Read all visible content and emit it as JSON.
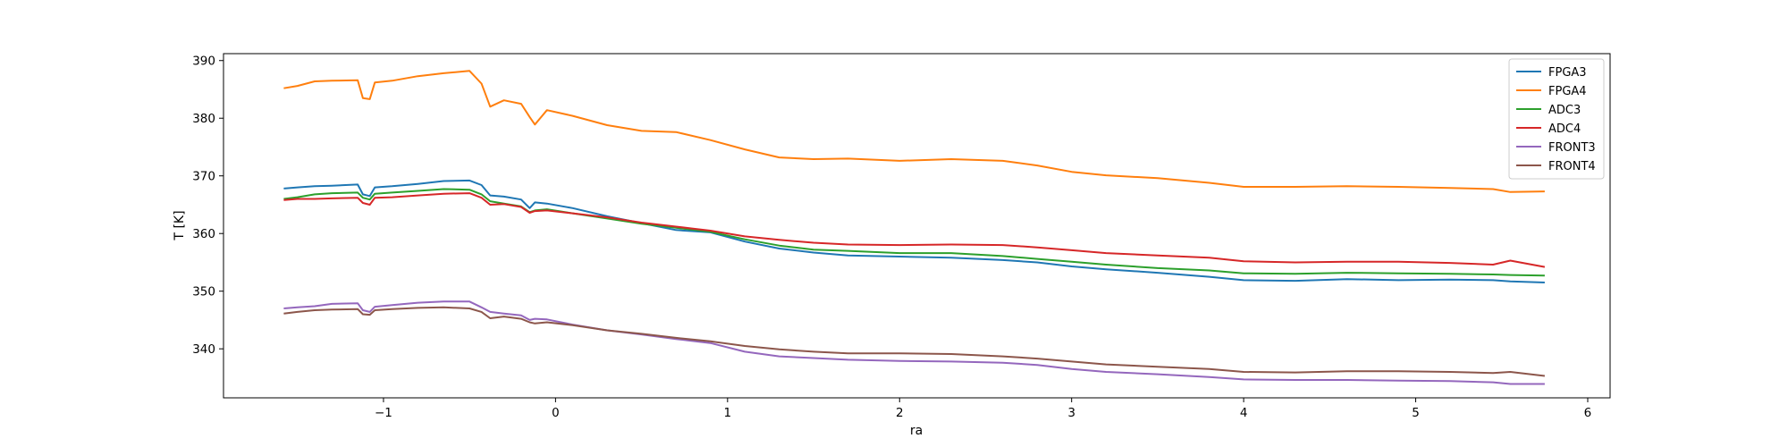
{
  "chart_data": {
    "type": "line",
    "xlabel": "ra",
    "ylabel": "T [K]",
    "xlim": [
      -1.93,
      6.13
    ],
    "ylim": [
      331.5,
      391.2
    ],
    "xticks": [
      -1,
      0,
      1,
      2,
      3,
      4,
      5,
      6
    ],
    "xtick_labels": [
      "−1",
      "0",
      "1",
      "2",
      "3",
      "4",
      "5",
      "6"
    ],
    "yticks": [
      340,
      350,
      360,
      370,
      380,
      390
    ],
    "ytick_labels": [
      "340",
      "350",
      "360",
      "370",
      "380",
      "390"
    ],
    "grid": false,
    "legend": "top-right",
    "x": [
      -1.58,
      -1.5,
      -1.4,
      -1.3,
      -1.15,
      -1.12,
      -1.08,
      -1.05,
      -0.95,
      -0.8,
      -0.65,
      -0.5,
      -0.43,
      -0.38,
      -0.3,
      -0.2,
      -0.15,
      -0.12,
      -0.05,
      0.1,
      0.3,
      0.5,
      0.7,
      0.9,
      1.1,
      1.3,
      1.5,
      1.7,
      2.0,
      2.3,
      2.6,
      2.8,
      3.0,
      3.2,
      3.5,
      3.8,
      4.0,
      4.3,
      4.6,
      4.9,
      5.2,
      5.45,
      5.55,
      5.75
    ],
    "series": [
      {
        "name": "FPGA3",
        "color": "#1f77b4",
        "values": [
          367.8,
          368.0,
          368.2,
          368.3,
          368.5,
          366.8,
          366.5,
          368.0,
          368.2,
          368.6,
          369.1,
          369.2,
          368.4,
          366.6,
          366.4,
          365.9,
          364.4,
          365.4,
          365.2,
          364.4,
          363.0,
          361.8,
          360.6,
          360.2,
          358.6,
          357.4,
          356.7,
          356.2,
          356.0,
          355.8,
          355.4,
          355.0,
          354.3,
          353.8,
          353.2,
          352.5,
          351.9,
          351.8,
          352.1,
          351.9,
          352.0,
          351.9,
          351.7,
          351.5
        ]
      },
      {
        "name": "FPGA4",
        "color": "#ff7f0e",
        "values": [
          385.2,
          385.6,
          386.4,
          386.5,
          386.6,
          383.5,
          383.3,
          386.2,
          386.5,
          387.3,
          387.8,
          388.2,
          386.0,
          382.0,
          383.1,
          382.5,
          380.2,
          378.9,
          381.4,
          380.4,
          378.8,
          377.8,
          377.6,
          376.2,
          374.6,
          373.2,
          372.9,
          373.0,
          372.6,
          372.9,
          372.6,
          371.8,
          370.7,
          370.1,
          369.6,
          368.8,
          368.1,
          368.1,
          368.2,
          368.1,
          367.9,
          367.7,
          367.2,
          367.3
        ]
      },
      {
        "name": "ADC3",
        "color": "#2ca02c",
        "values": [
          366.0,
          366.3,
          366.8,
          367.0,
          367.1,
          366.2,
          365.9,
          366.9,
          367.1,
          367.4,
          367.7,
          367.6,
          366.8,
          365.6,
          365.2,
          364.7,
          363.7,
          364.0,
          364.2,
          363.5,
          362.6,
          361.7,
          361.0,
          360.3,
          359.0,
          357.9,
          357.2,
          357.0,
          356.6,
          356.6,
          356.1,
          355.6,
          355.1,
          354.6,
          354.0,
          353.6,
          353.1,
          353.0,
          353.2,
          353.1,
          353.0,
          352.9,
          352.8,
          352.7
        ]
      },
      {
        "name": "ADC4",
        "color": "#d62728",
        "values": [
          365.8,
          366.0,
          366.0,
          366.1,
          366.2,
          365.3,
          365.0,
          366.2,
          366.3,
          366.6,
          366.9,
          367.0,
          366.2,
          365.0,
          365.1,
          364.6,
          363.6,
          363.9,
          364.0,
          363.5,
          362.8,
          361.9,
          361.2,
          360.5,
          359.5,
          358.9,
          358.4,
          358.1,
          358.0,
          358.1,
          358.0,
          357.6,
          357.1,
          356.6,
          356.2,
          355.8,
          355.2,
          355.0,
          355.1,
          355.1,
          354.9,
          354.6,
          355.3,
          354.2
        ]
      },
      {
        "name": "FRONT3",
        "color": "#9467bd",
        "values": [
          347.0,
          347.2,
          347.4,
          347.8,
          347.9,
          346.7,
          346.4,
          347.3,
          347.6,
          348.0,
          348.2,
          348.2,
          347.2,
          346.4,
          346.1,
          345.8,
          345.0,
          345.2,
          345.1,
          344.2,
          343.2,
          342.5,
          341.7,
          341.0,
          339.5,
          338.7,
          338.4,
          338.1,
          337.9,
          337.8,
          337.6,
          337.2,
          336.5,
          336.0,
          335.6,
          335.1,
          334.7,
          334.6,
          334.6,
          334.5,
          334.4,
          334.2,
          333.9,
          333.9
        ]
      },
      {
        "name": "FRONT4",
        "color": "#8c564b",
        "values": [
          346.1,
          346.4,
          346.7,
          346.8,
          346.9,
          346.0,
          345.9,
          346.7,
          346.9,
          347.1,
          347.2,
          347.0,
          346.4,
          345.3,
          345.6,
          345.2,
          344.6,
          344.4,
          344.6,
          344.1,
          343.2,
          342.6,
          341.9,
          341.3,
          340.5,
          339.9,
          339.5,
          339.2,
          339.2,
          339.1,
          338.7,
          338.3,
          337.8,
          337.3,
          336.9,
          336.5,
          336.0,
          335.9,
          336.1,
          336.1,
          336.0,
          335.8,
          336.0,
          335.3
        ]
      }
    ]
  }
}
